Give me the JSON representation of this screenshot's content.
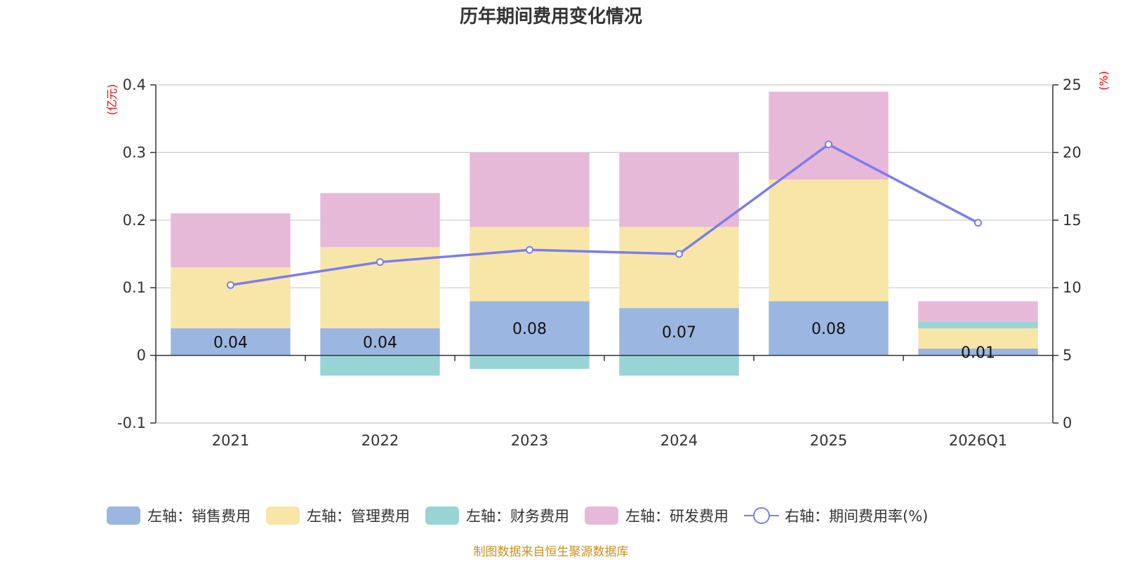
{
  "chart_data": {
    "type": "bar",
    "title": "历年期间费用变化情况",
    "categories": [
      "2021",
      "2022",
      "2023",
      "2024",
      "2025",
      "2026Q1"
    ],
    "series": [
      {
        "name": "左轴：销售费用",
        "axis": "left",
        "color": "#9bb6e0",
        "values": [
          0.04,
          0.04,
          0.08,
          0.07,
          0.08,
          0.01
        ]
      },
      {
        "name": "左轴：管理费用",
        "axis": "left",
        "color": "#f8e6a8",
        "values": [
          0.09,
          0.12,
          0.11,
          0.12,
          0.18,
          0.03
        ]
      },
      {
        "name": "左轴：财务费用",
        "axis": "left",
        "color": "#98d4d4",
        "values": [
          0.0,
          -0.03,
          -0.02,
          -0.03,
          0.0,
          0.01
        ]
      },
      {
        "name": "左轴：研发费用",
        "axis": "left",
        "color": "#e7b9d9",
        "values": [
          0.08,
          0.08,
          0.11,
          0.11,
          0.13,
          0.03
        ]
      },
      {
        "name": "右轴：期间费用率(%)",
        "axis": "right",
        "type": "line",
        "color": "#7b7ded",
        "values": [
          10.2,
          11.9,
          12.8,
          12.5,
          20.6,
          14.8
        ]
      }
    ],
    "data_labels": [
      "0.04",
      "0.04",
      "0.08",
      "0.07",
      "0.08",
      "0.01"
    ],
    "left_axis": {
      "unit": "(亿元)",
      "ylim": [
        -0.1,
        0.4
      ],
      "ticks": [
        -0.1,
        0,
        0.1,
        0.2,
        0.3,
        0.4
      ],
      "tick_labels": [
        "-0.1",
        "0",
        "0.1",
        "0.2",
        "0.3",
        "0.4"
      ]
    },
    "right_axis": {
      "unit": "(%)",
      "ylim": [
        0,
        25
      ],
      "ticks": [
        0,
        5,
        10,
        15,
        20,
        25
      ],
      "tick_labels": [
        "0",
        "5",
        "10",
        "15",
        "20",
        "25"
      ]
    },
    "grid": true,
    "legend_position": "bottom"
  },
  "source_note": "制图数据来自恒生聚源数据库"
}
